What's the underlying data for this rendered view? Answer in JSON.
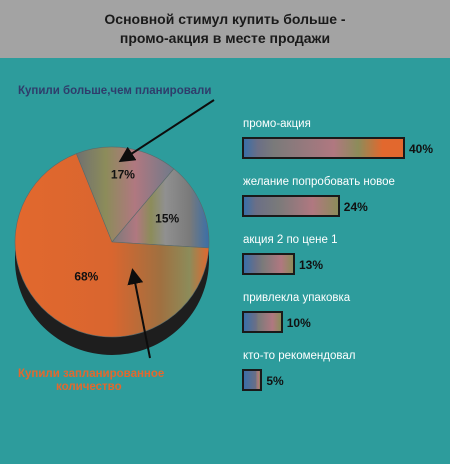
{
  "title": [
    "Основной стимул купить больше -",
    "промо-акция в месте продажи"
  ],
  "colors": {
    "background": "#2d9c9c",
    "header": "#a3a3a3",
    "orange": "#e2682e",
    "grey": "#808080",
    "blue": "#3a6fa8",
    "rose": "#b07880",
    "olive": "#8c8c5a",
    "depth": "#1e1e1e",
    "callout_top": "#2f3d6b",
    "callout_bottom": "#e2682e"
  },
  "callouts": {
    "top": "Купили больше,чем планировали",
    "bottom_line1": "Купили запланированное",
    "bottom_line2": "количество"
  },
  "chart_data": [
    {
      "type": "pie",
      "slices": [
        {
          "label": "17%",
          "value": 17
        },
        {
          "label": "15%",
          "value": 15
        },
        {
          "label": "68%",
          "value": 68
        }
      ]
    },
    {
      "type": "bar",
      "orientation": "horizontal",
      "categories": [
        "промо-акция",
        "желание попробовать новое",
        "акция 2 по цене 1",
        "привлекла упаковка",
        "кто-то рекомендовал"
      ],
      "values": [
        40,
        24,
        13,
        10,
        5
      ],
      "value_labels": [
        "40%",
        "24%",
        "13%",
        "10%",
        "5%"
      ],
      "xlim": [
        0,
        40
      ]
    }
  ]
}
